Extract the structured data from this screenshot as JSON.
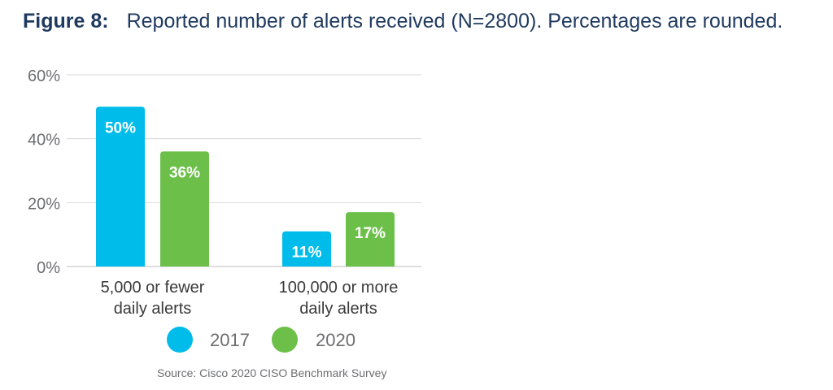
{
  "figure": {
    "label": "Figure 8:",
    "caption": "Reported number of alerts received (N=2800). Percentages are rounded."
  },
  "chart_data": {
    "type": "bar",
    "categories": [
      [
        "5,000 or fewer",
        "daily alerts"
      ],
      [
        "100,000 or more",
        "daily alerts"
      ]
    ],
    "series": [
      {
        "name": "2017",
        "values": [
          50,
          11
        ],
        "labels": [
          "50%",
          "11%"
        ],
        "color": "#00bceb"
      },
      {
        "name": "2020",
        "values": [
          36,
          17
        ],
        "labels": [
          "36%",
          "17%"
        ],
        "color": "#6cc04a"
      }
    ],
    "yticks": [
      "0%",
      "20%",
      "40%",
      "60%"
    ],
    "ylim": [
      0,
      60
    ],
    "grid": true,
    "legend_position": "bottom"
  },
  "source": "Source: Cisco 2020 CISO Benchmark Survey",
  "colors": {
    "title": "#1f3a5f",
    "axis_text": "#6d6e71",
    "gridline": "#d9d9d9"
  }
}
